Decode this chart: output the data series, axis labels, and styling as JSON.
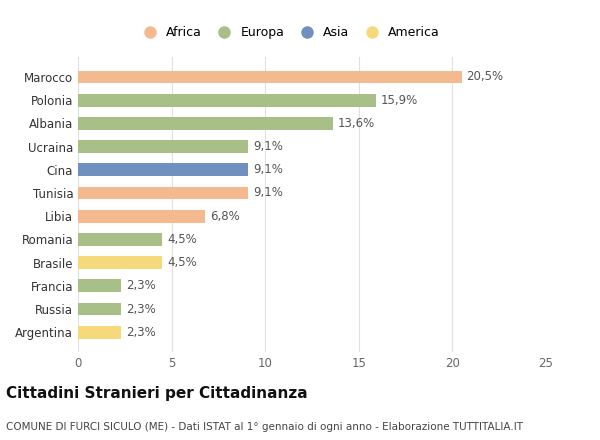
{
  "categories": [
    "Argentina",
    "Russia",
    "Francia",
    "Brasile",
    "Romania",
    "Libia",
    "Tunisia",
    "Cina",
    "Ucraina",
    "Albania",
    "Polonia",
    "Marocco"
  ],
  "values": [
    2.3,
    2.3,
    2.3,
    4.5,
    4.5,
    6.8,
    9.1,
    9.1,
    9.1,
    13.6,
    15.9,
    20.5
  ],
  "labels": [
    "2,3%",
    "2,3%",
    "2,3%",
    "4,5%",
    "4,5%",
    "6,8%",
    "9,1%",
    "9,1%",
    "9,1%",
    "13,6%",
    "15,9%",
    "20,5%"
  ],
  "colors": [
    "#f5d97a",
    "#a8bf88",
    "#a8bf88",
    "#f5d97a",
    "#a8bf88",
    "#f5b990",
    "#f5b990",
    "#7090c0",
    "#a8bf88",
    "#a8bf88",
    "#a8bf88",
    "#f5b990"
  ],
  "legend": [
    {
      "label": "Africa",
      "color": "#f5b990"
    },
    {
      "label": "Europa",
      "color": "#a8bf88"
    },
    {
      "label": "Asia",
      "color": "#7090c0"
    },
    {
      "label": "America",
      "color": "#f5d97a"
    }
  ],
  "xlim": [
    0,
    25
  ],
  "xticks": [
    0,
    5,
    10,
    15,
    20,
    25
  ],
  "title": "Cittadini Stranieri per Cittadinanza",
  "subtitle": "COMUNE DI FURCI SICULO (ME) - Dati ISTAT al 1° gennaio di ogni anno - Elaborazione TUTTITALIA.IT",
  "bar_height": 0.55,
  "background_color": "#ffffff",
  "grid_color": "#e0e0e0",
  "label_fontsize": 8.5,
  "ytick_fontsize": 8.5,
  "xtick_fontsize": 8.5,
  "title_fontsize": 11,
  "subtitle_fontsize": 7.5
}
